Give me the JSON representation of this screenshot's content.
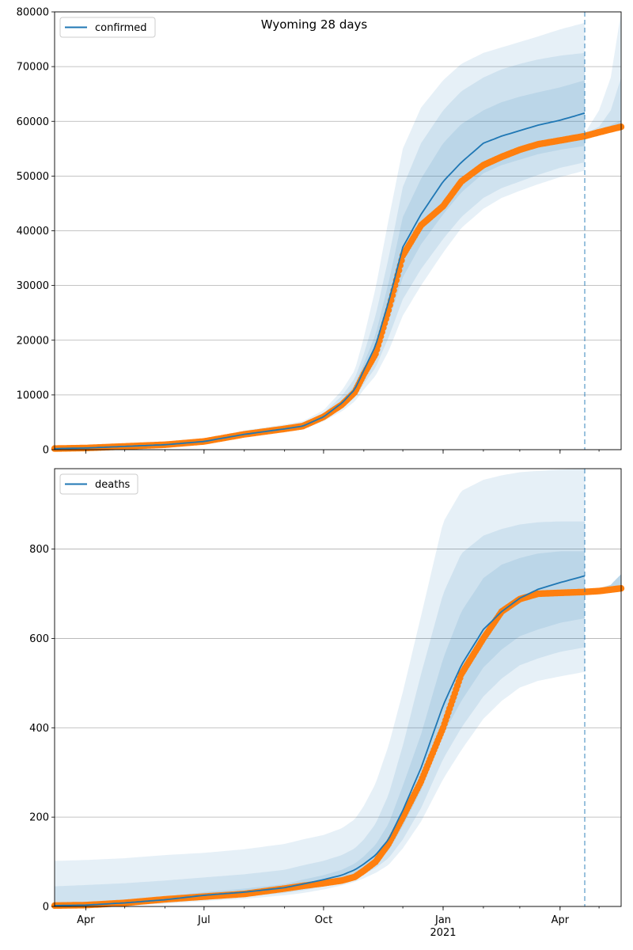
{
  "title": "Wyoming 28 days",
  "chart_data": [
    {
      "type": "line",
      "legend": "confirmed",
      "legend_position": "top-left",
      "grid": "y",
      "ylim": [
        0,
        80000
      ],
      "yticks": [
        0,
        10000,
        20000,
        30000,
        40000,
        50000,
        60000,
        70000,
        80000
      ],
      "xlim": [
        "2020-03-08",
        "2021-05-18"
      ],
      "forecast_date": "2021-04-20",
      "model": {
        "x": [
          "2020-03-08",
          "2020-04-01",
          "2020-05-01",
          "2020-06-01",
          "2020-07-01",
          "2020-08-01",
          "2020-09-01",
          "2020-09-15",
          "2020-10-01",
          "2020-10-15",
          "2020-10-25",
          "2020-11-01",
          "2020-11-10",
          "2020-11-20",
          "2020-12-01",
          "2020-12-15",
          "2021-01-01",
          "2021-01-15",
          "2021-02-01",
          "2021-02-15",
          "2021-03-01",
          "2021-03-15",
          "2021-04-01",
          "2021-04-20"
        ],
        "median": [
          200,
          300,
          600,
          900,
          1500,
          2800,
          3800,
          4300,
          6000,
          8500,
          11000,
          14500,
          19000,
          27000,
          37000,
          43000,
          49000,
          52500,
          56000,
          57300,
          58300,
          59300,
          60200,
          61500
        ],
        "band_inner_low": [
          150,
          250,
          550,
          850,
          1450,
          2650,
          3600,
          4100,
          5700,
          8000,
          10200,
          13300,
          17000,
          23500,
          31500,
          37500,
          43000,
          47000,
          50500,
          52000,
          53000,
          54000,
          54800,
          55500
        ],
        "band_inner_high": [
          250,
          350,
          650,
          950,
          1550,
          2950,
          4000,
          4500,
          6300,
          9000,
          11800,
          15800,
          21000,
          30500,
          42500,
          49500,
          56000,
          59500,
          62000,
          63500,
          64500,
          65300,
          66200,
          67500
        ],
        "band_mid_low": [
          100,
          200,
          500,
          800,
          1400,
          2500,
          3400,
          3900,
          5400,
          7500,
          9500,
          12000,
          15000,
          20500,
          27500,
          33000,
          38500,
          42500,
          46000,
          47800,
          49000,
          50200,
          51500,
          52500
        ],
        "band_mid_high": [
          300,
          400,
          700,
          1000,
          1700,
          3200,
          4200,
          4800,
          6700,
          9800,
          13000,
          17500,
          24500,
          35000,
          48000,
          56000,
          62000,
          65500,
          68000,
          69500,
          70500,
          71300,
          72000,
          72500
        ],
        "band_outer_low": [
          50,
          150,
          450,
          750,
          1300,
          2300,
          3200,
          3700,
          5200,
          7000,
          8800,
          11000,
          13500,
          18000,
          24500,
          30000,
          36000,
          40500,
          44000,
          46000,
          47300,
          48500,
          49800,
          51000
        ],
        "band_outer_high": [
          400,
          500,
          800,
          1100,
          1900,
          3500,
          4600,
          5200,
          7200,
          10800,
          14500,
          20500,
          29500,
          42000,
          55000,
          62500,
          67500,
          70500,
          72500,
          73500,
          74500,
          75500,
          76800,
          78000
        ]
      },
      "future_band": {
        "x": [
          "2021-04-20",
          "2021-05-01",
          "2021-05-10",
          "2021-05-18"
        ],
        "inner_high": [
          57800,
          58500,
          59300,
          60200
        ],
        "mid_high": [
          57800,
          59000,
          62000,
          68000
        ],
        "outer_high": [
          57800,
          62000,
          68000,
          80000
        ]
      },
      "observed": {
        "x": [
          "2020-03-08",
          "2020-04-01",
          "2020-05-01",
          "2020-06-01",
          "2020-07-01",
          "2020-08-01",
          "2020-09-01",
          "2020-09-15",
          "2020-10-01",
          "2020-10-15",
          "2020-10-25",
          "2020-11-01",
          "2020-11-10",
          "2020-11-20",
          "2020-12-01",
          "2020-12-15",
          "2021-01-01",
          "2021-01-15",
          "2021-02-01",
          "2021-02-15",
          "2021-03-01",
          "2021-03-15",
          "2021-04-01",
          "2021-04-20",
          "2021-05-01",
          "2021-05-18"
        ],
        "y": [
          200,
          300,
          600,
          900,
          1500,
          2800,
          3800,
          4300,
          6000,
          8200,
          10500,
          13800,
          17500,
          25500,
          35500,
          41000,
          44500,
          49000,
          52000,
          53500,
          54800,
          55800,
          56500,
          57300,
          58000,
          59000
        ]
      }
    },
    {
      "type": "line",
      "legend": "deaths",
      "legend_position": "top-left",
      "grid": "y",
      "ylim": [
        0,
        980
      ],
      "yticks": [
        0,
        200,
        400,
        600,
        800
      ],
      "xlim": [
        "2020-03-08",
        "2021-05-18"
      ],
      "xticks": [
        "Apr",
        "Jul",
        "Oct",
        "Jan",
        "Apr"
      ],
      "xtick_dates": [
        "2020-04-01",
        "2020-07-01",
        "2020-10-01",
        "2021-01-01",
        "2021-04-01"
      ],
      "year_label": "2021",
      "forecast_date": "2021-04-20",
      "model": {
        "x": [
          "2020-03-08",
          "2020-04-01",
          "2020-05-01",
          "2020-06-01",
          "2020-07-01",
          "2020-08-01",
          "2020-09-01",
          "2020-09-15",
          "2020-10-01",
          "2020-10-15",
          "2020-10-25",
          "2020-11-01",
          "2020-11-10",
          "2020-11-20",
          "2020-12-01",
          "2020-12-15",
          "2021-01-01",
          "2021-01-15",
          "2021-02-01",
          "2021-02-15",
          "2021-03-01",
          "2021-03-15",
          "2021-04-01",
          "2021-04-20"
        ],
        "median": [
          2,
          3,
          8,
          15,
          25,
          32,
          42,
          50,
          60,
          70,
          82,
          95,
          115,
          150,
          215,
          310,
          450,
          540,
          620,
          660,
          690,
          710,
          725,
          740
        ],
        "band_inner_low": [
          1,
          2,
          6,
          12,
          20,
          27,
          36,
          43,
          52,
          62,
          72,
          82,
          98,
          125,
          180,
          260,
          385,
          460,
          535,
          575,
          605,
          620,
          635,
          645
        ],
        "band_inner_high": [
          8,
          10,
          15,
          22,
          32,
          40,
          50,
          60,
          70,
          82,
          96,
          112,
          138,
          185,
          270,
          385,
          555,
          660,
          735,
          765,
          780,
          790,
          795,
          795
        ],
        "band_mid_low": [
          0,
          1,
          4,
          9,
          16,
          22,
          30,
          36,
          45,
          55,
          63,
          72,
          86,
          108,
          150,
          220,
          330,
          400,
          470,
          510,
          540,
          555,
          570,
          580
        ],
        "band_mid_high": [
          45,
          48,
          52,
          58,
          65,
          72,
          82,
          92,
          102,
          115,
          130,
          150,
          185,
          250,
          360,
          520,
          700,
          790,
          830,
          845,
          855,
          860,
          862,
          862
        ],
        "band_outer_low": [
          0,
          0,
          2,
          6,
          12,
          17,
          25,
          30,
          38,
          47,
          55,
          63,
          75,
          93,
          130,
          190,
          285,
          350,
          420,
          460,
          490,
          505,
          515,
          525
        ],
        "band_outer_high": [
          102,
          104,
          108,
          115,
          120,
          128,
          140,
          150,
          160,
          175,
          195,
          225,
          275,
          360,
          480,
          650,
          860,
          930,
          955,
          965,
          972,
          975,
          978,
          980
        ]
      },
      "future_band": {
        "x": [
          "2021-04-20",
          "2021-05-01",
          "2021-05-10",
          "2021-05-18"
        ],
        "inner_high": [
          708,
          712,
          720,
          744
        ],
        "mid_high": [
          708,
          712,
          720,
          744
        ],
        "outer_high": [
          708,
          712,
          720,
          744
        ]
      },
      "observed": {
        "x": [
          "2020-03-08",
          "2020-04-01",
          "2020-05-01",
          "2020-06-01",
          "2020-07-01",
          "2020-08-01",
          "2020-09-01",
          "2020-09-15",
          "2020-10-01",
          "2020-10-15",
          "2020-10-25",
          "2020-11-01",
          "2020-11-10",
          "2020-11-20",
          "2020-12-01",
          "2020-12-15",
          "2021-01-01",
          "2021-01-15",
          "2021-02-01",
          "2021-02-15",
          "2021-03-01",
          "2021-03-15",
          "2021-04-01",
          "2021-04-20",
          "2021-05-01",
          "2021-05-18"
        ],
        "y": [
          2,
          3,
          8,
          16,
          22,
          28,
          40,
          46,
          52,
          58,
          66,
          80,
          100,
          140,
          200,
          280,
          400,
          520,
          600,
          660,
          688,
          700,
          702,
          704,
          706,
          712
        ]
      }
    }
  ]
}
